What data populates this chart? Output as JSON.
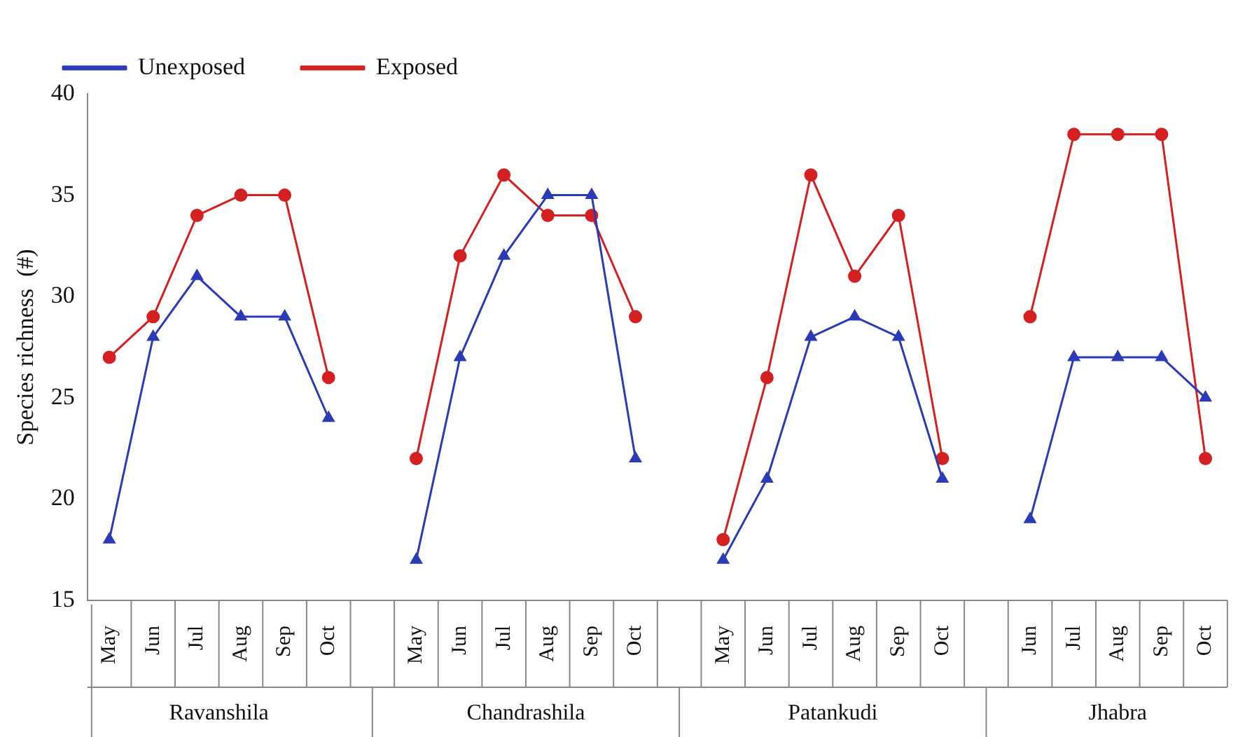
{
  "chart_data": {
    "type": "line",
    "ylabel": "Species richness  (#)",
    "categories": [
      "May",
      "Jun",
      "Jul",
      "Aug",
      "Sep",
      "Oct",
      null,
      "May",
      "Jun",
      "Jul",
      "Aug",
      "Sep",
      "Oct",
      null,
      "May",
      "Jun",
      "Jul",
      "Aug",
      "Sep",
      "Oct",
      null,
      "Jun",
      "Jul",
      "Aug",
      "Sep",
      "Oct"
    ],
    "series": [
      {
        "name": "Unexposed",
        "color": "#2a3bb5",
        "marker": "triangle",
        "values": [
          18,
          28,
          31,
          29,
          29,
          24,
          null,
          17,
          27,
          32,
          35,
          35,
          22,
          null,
          17,
          21,
          28,
          29,
          28,
          21,
          null,
          19,
          27,
          27,
          27,
          25
        ]
      },
      {
        "name": "Exposed",
        "color": "#d42020",
        "marker": "circle",
        "values": [
          27,
          29,
          34,
          35,
          35,
          26,
          null,
          22,
          32,
          36,
          34,
          34,
          29,
          null,
          18,
          26,
          36,
          31,
          34,
          22,
          null,
          29,
          38,
          38,
          38,
          22
        ]
      }
    ],
    "annotations": [
      "Ravanshila",
      "Chandrashila",
      "Patankudi",
      "Jhabra"
    ],
    "ylim": [
      15,
      40
    ],
    "yticks": [
      15,
      20,
      25,
      30,
      35,
      40
    ],
    "grid": false,
    "legend": "top left",
    "line_style": "solid"
  }
}
